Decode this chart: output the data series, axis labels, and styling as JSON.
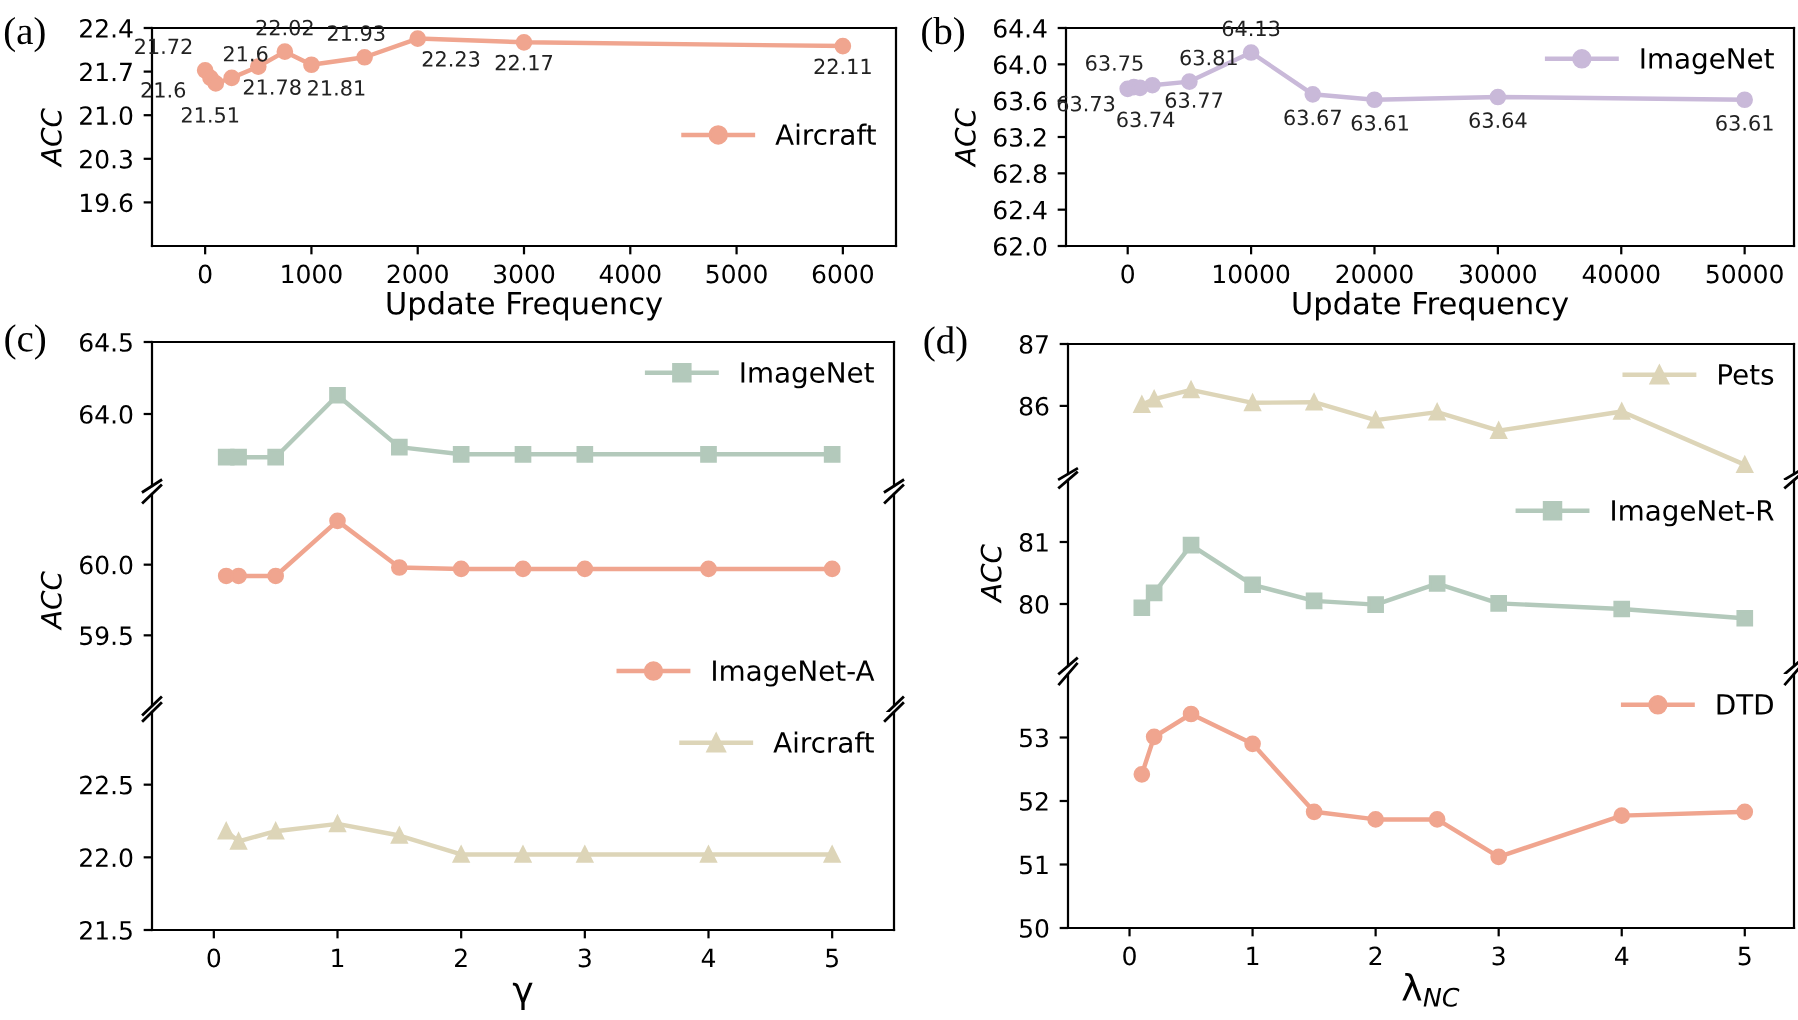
{
  "chart_data": [
    {
      "type": "line",
      "title": "(a)",
      "xlabel": "Update Frequency",
      "ylabel": "ACC",
      "x": [
        0,
        50,
        100,
        250,
        500,
        750,
        1000,
        1500,
        2000,
        3000,
        6000
      ],
      "series": [
        {
          "name": "Aircraft",
          "color": "#f0a58f",
          "marker": "circle",
          "values": [
            21.72,
            21.6,
            21.51,
            21.6,
            21.78,
            22.02,
            21.81,
            21.93,
            22.23,
            22.17,
            22.11
          ]
        }
      ],
      "data_labels": true,
      "xlim": [
        -500,
        6500
      ],
      "xticks": [
        0,
        1000,
        2000,
        3000,
        4000,
        5000,
        6000
      ],
      "ylim": [
        18.9,
        22.4
      ],
      "yticks": [
        19.6,
        20.3,
        {
          "value": 21.0,
          "label": "21.0"
        },
        21.7,
        22.4
      ],
      "legend": "right"
    },
    {
      "type": "line",
      "title": "(b)",
      "xlabel": "Update Frequency",
      "ylabel": "ACC",
      "x": [
        0,
        500,
        1000,
        2000,
        5000,
        10000,
        15000,
        20000,
        30000,
        50000
      ],
      "series": [
        {
          "name": "ImageNet",
          "color": "#c9b9d9",
          "marker": "circle",
          "values": [
            63.73,
            63.75,
            63.74,
            63.77,
            63.81,
            64.13,
            63.67,
            63.61,
            63.64,
            63.61
          ]
        }
      ],
      "data_labels": true,
      "xlim": [
        -5000,
        54000
      ],
      "xticks": [
        0,
        10000,
        20000,
        30000,
        40000,
        50000
      ],
      "ylim": [
        62.0,
        64.4
      ],
      "yticks": [
        {
          "value": 62.0,
          "label": "62.0"
        },
        62.4,
        62.8,
        63.2,
        63.6,
        {
          "value": 64.0,
          "label": "64.0"
        },
        64.4
      ],
      "legend": "top right"
    },
    {
      "type": "line",
      "title": "(c)",
      "x": [
        0.1,
        0.2,
        0.5,
        1,
        1.5,
        2,
        2.5,
        3,
        4,
        5
      ],
      "series": [
        {
          "name": "ImageNet",
          "color": "#b3c9bb",
          "marker": "square",
          "values": [
            63.7,
            63.7,
            63.7,
            64.13,
            63.77,
            63.72,
            63.72,
            63.72,
            63.72,
            63.72
          ]
        }
      ],
      "xlim": [
        -0.5,
        5.5
      ],
      "ylim": [
        63.5,
        64.5
      ],
      "yticks": [
        {
          "value": 64.0,
          "label": "64.0"
        },
        64.5
      ],
      "tick_labels": "y",
      "legend": "top right"
    },
    {
      "type": "line",
      "ylabel": "ACC",
      "x": [
        0.1,
        0.2,
        0.5,
        1,
        1.5,
        2,
        2.5,
        3,
        4,
        5
      ],
      "series": [
        {
          "name": "ImageNet-A",
          "color": "#f0a58f",
          "marker": "circle",
          "values": [
            59.92,
            59.92,
            59.92,
            60.31,
            59.98,
            59.97,
            59.97,
            59.97,
            59.97,
            59.97
          ]
        }
      ],
      "xlim": [
        -0.5,
        5.5
      ],
      "ylim": [
        59.0,
        60.5
      ],
      "yticks": [
        59.5,
        {
          "value": 60.0,
          "label": "60.0"
        }
      ],
      "tick_labels": "y",
      "legend": "bottom right"
    },
    {
      "type": "line",
      "xlabel": "γ",
      "x": [
        0.1,
        0.2,
        0.5,
        1,
        1.5,
        2,
        2.5,
        3,
        4,
        5
      ],
      "series": [
        {
          "name": "Aircraft",
          "color": "#ddd5b8",
          "marker": "triangle",
          "values": [
            22.18,
            22.11,
            22.18,
            22.23,
            22.15,
            22.02,
            22.02,
            22.02,
            22.02,
            22.02
          ]
        }
      ],
      "xlim": [
        -0.5,
        5.5
      ],
      "xticks": [
        0,
        1,
        2,
        3,
        4,
        5
      ],
      "ylim": [
        21.5,
        23.0
      ],
      "yticks": [
        21.5,
        {
          "value": 22.0,
          "label": "22.0"
        },
        22.5
      ],
      "legend": "top right"
    },
    {
      "type": "line",
      "title": "(d)",
      "x": [
        0.1,
        0.2,
        0.5,
        1,
        1.5,
        2,
        2.5,
        3,
        4,
        5
      ],
      "series": [
        {
          "name": "Pets",
          "color": "#ddd5b8",
          "marker": "triangle",
          "values": [
            86.02,
            86.11,
            86.26,
            86.05,
            86.06,
            85.77,
            85.9,
            85.6,
            85.91,
            85.05
          ]
        }
      ],
      "xlim": [
        -0.5,
        5.4
      ],
      "ylim": [
        84.9,
        87
      ],
      "yticks": [
        86,
        87
      ],
      "tick_labels": "y",
      "legend": "top right"
    },
    {
      "type": "line",
      "ylabel": "ACC",
      "x": [
        0.1,
        0.2,
        0.5,
        1,
        1.5,
        2,
        2.5,
        3,
        4,
        5
      ],
      "series": [
        {
          "name": "ImageNet-R",
          "color": "#b3c9bb",
          "marker": "square",
          "values": [
            79.94,
            80.18,
            80.95,
            80.31,
            80.05,
            79.99,
            80.33,
            80.01,
            79.92,
            79.77
          ]
        }
      ],
      "xlim": [
        -0.5,
        5.4
      ],
      "ylim": [
        79,
        82
      ],
      "yticks": [
        80,
        81
      ],
      "tick_labels": "y",
      "legend": "top right"
    },
    {
      "type": "line",
      "xlabel": "λ$_{NC}$",
      "x": [
        0.1,
        0.2,
        0.5,
        1,
        1.5,
        2,
        2.5,
        3,
        4,
        5
      ],
      "series": [
        {
          "name": "DTD",
          "color": "#f0a58f",
          "marker": "circle",
          "values": [
            52.42,
            53.01,
            53.37,
            52.9,
            51.83,
            51.71,
            51.71,
            51.12,
            51.77,
            51.83
          ]
        }
      ],
      "xlim": [
        -0.5,
        5.4
      ],
      "xticks": [
        0,
        1,
        2,
        3,
        4,
        5
      ],
      "ylim": [
        50,
        54
      ],
      "yticks": [
        50,
        51,
        52,
        53
      ],
      "legend": "top right"
    }
  ]
}
